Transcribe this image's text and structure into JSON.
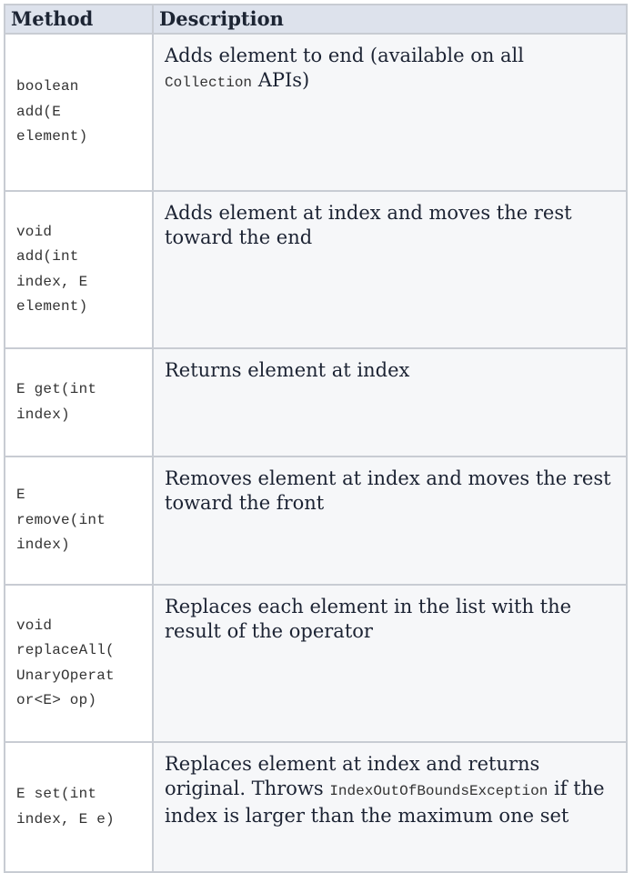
{
  "table": {
    "headers": {
      "method": "Method",
      "description": "Description"
    },
    "rows": [
      {
        "method_lines": [
          "boolean",
          "add(E",
          "element)"
        ],
        "desc_parts": [
          "Adds element to end (available on all ",
          "Collection",
          " APIs)"
        ]
      },
      {
        "method_lines": [
          "void",
          "add(int",
          "index, E",
          "element)"
        ],
        "desc_parts": [
          "Adds element at index and moves the rest toward the end"
        ]
      },
      {
        "method_lines": [
          "E get(int",
          "index)"
        ],
        "desc_parts": [
          "Returns element at index"
        ]
      },
      {
        "method_lines": [
          "E",
          "remove(int",
          "index)"
        ],
        "desc_parts": [
          "Removes element at index and moves the rest toward the front"
        ]
      },
      {
        "method_lines": [
          "void",
          "replaceAll(",
          "UnaryOperat",
          "or<E> op)"
        ],
        "desc_parts": [
          "Replaces each element in the list with the result of the operator"
        ]
      },
      {
        "method_lines": [
          "E set(int",
          "index, E e)"
        ],
        "desc_parts": [
          "Replaces element at index and returns original. Throws ",
          "IndexOutOfBoundsException",
          " if the index is larger than the maximum one set"
        ]
      }
    ]
  }
}
